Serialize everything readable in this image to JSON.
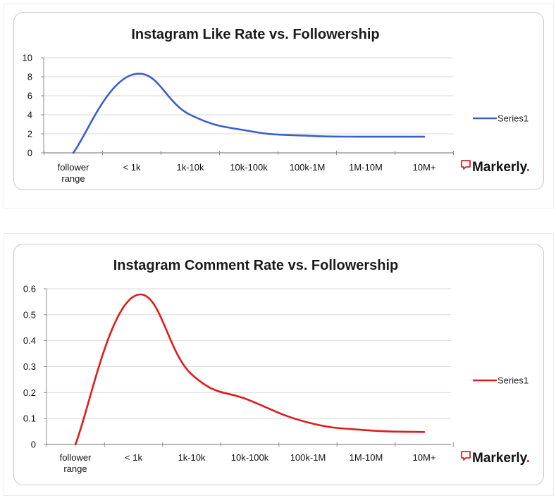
{
  "colors": {
    "series_blue": "#3a5fcd",
    "series_red": "#e01b1b",
    "grid": "#d9d9d9",
    "axis": "#8c8c8c",
    "brand_red": "#d7262c"
  },
  "chart_data": [
    {
      "type": "line",
      "title": "Instagram Like Rate vs. Followership",
      "categories": [
        "follower\nrange",
        "< 1k",
        "1k-10k",
        "10k-100k",
        "100k-1M",
        "1M-10M",
        "10M+"
      ],
      "series": [
        {
          "name": "Series1",
          "values": [
            0,
            8.2,
            4.0,
            2.3,
            1.8,
            1.7,
            1.7
          ]
        }
      ],
      "ylim": [
        0,
        10
      ],
      "yticks": [
        0,
        2,
        4,
        6,
        8,
        10
      ],
      "ytick_labels": [
        "0",
        "2",
        "4",
        "6",
        "8",
        "10"
      ],
      "xlabel": "",
      "ylabel": "",
      "grid": true,
      "legend": "right",
      "brand": "Markerly",
      "brand_dot": "."
    },
    {
      "type": "line",
      "title": "Instagram Comment Rate vs. Followership",
      "categories": [
        "follower\nrange",
        "< 1k",
        "1k-10k",
        "10k-100k",
        "100k-1M",
        "1M-10M",
        "10M+"
      ],
      "series": [
        {
          "name": "Series1",
          "values": [
            0,
            0.57,
            0.27,
            0.17,
            0.085,
            0.055,
            0.048
          ]
        }
      ],
      "ylim": [
        0,
        0.6
      ],
      "yticks": [
        0,
        0.1,
        0.2,
        0.3,
        0.4,
        0.5,
        0.6
      ],
      "ytick_labels": [
        "0",
        "0.1",
        "0.2",
        "0.3",
        "0.4",
        "0.5",
        "0.6"
      ],
      "xlabel": "",
      "ylabel": "",
      "grid": true,
      "legend": "right",
      "brand": "Markerly",
      "brand_dot": "."
    }
  ]
}
